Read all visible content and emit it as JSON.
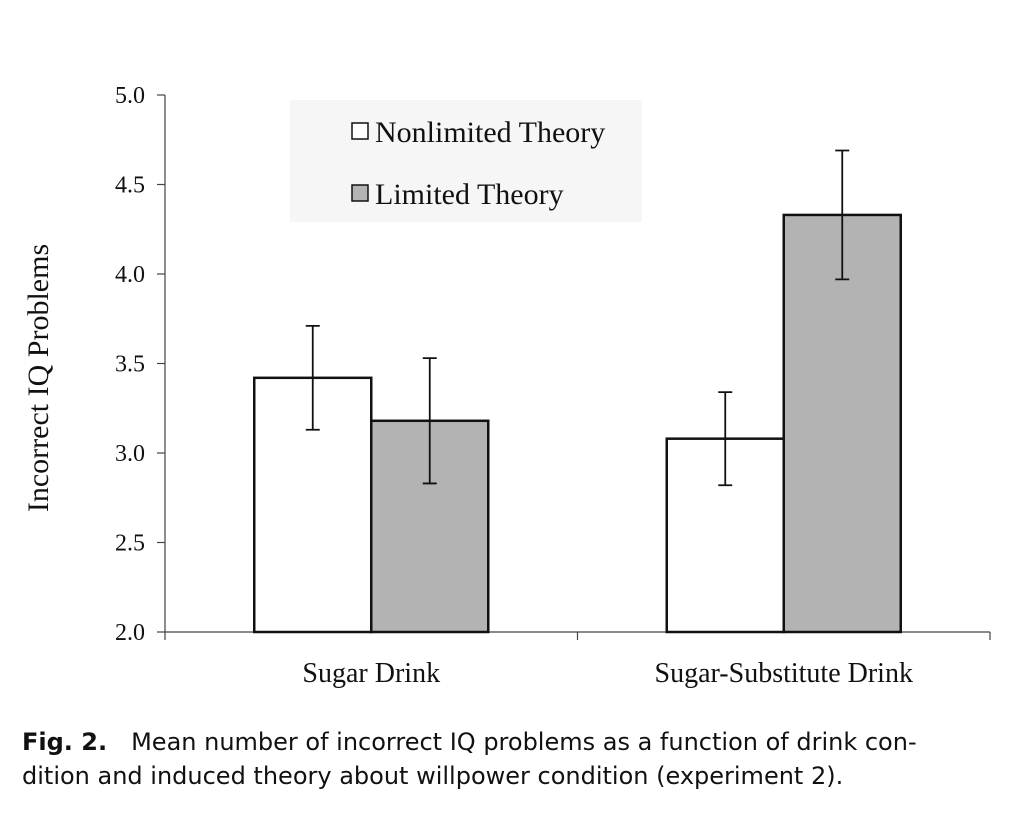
{
  "chart_data": {
    "type": "bar",
    "ylabel": "Incorrect IQ Problems",
    "categories": [
      "Sugar Drink",
      "Sugar-Substitute Drink"
    ],
    "series": [
      {
        "name": "Nonlimited Theory",
        "color": "#ffffff",
        "values": [
          3.42,
          3.08
        ],
        "errors": [
          0.29,
          0.26
        ]
      },
      {
        "name": "Limited Theory",
        "color": "#b3b3b3",
        "values": [
          3.18,
          4.33
        ],
        "errors": [
          0.35,
          0.36
        ]
      }
    ],
    "ylim": [
      2.0,
      5.0
    ],
    "yticks": [
      {
        "value": 2.0,
        "label": "2.0"
      },
      {
        "value": 2.5,
        "label": "2.5"
      },
      {
        "value": 3.0,
        "label": "3.0"
      },
      {
        "value": 3.5,
        "label": "3.5"
      },
      {
        "value": 4.0,
        "label": "4.0"
      },
      {
        "value": 4.5,
        "label": "4.5"
      },
      {
        "value": 5.0,
        "label": "5.0"
      }
    ]
  },
  "caption": {
    "label": "Fig. 2.",
    "lines": [
      "Mean number of incorrect IQ problems as a function of drink con-",
      "dition and induced theory about willpower condition (experiment 2)."
    ]
  }
}
